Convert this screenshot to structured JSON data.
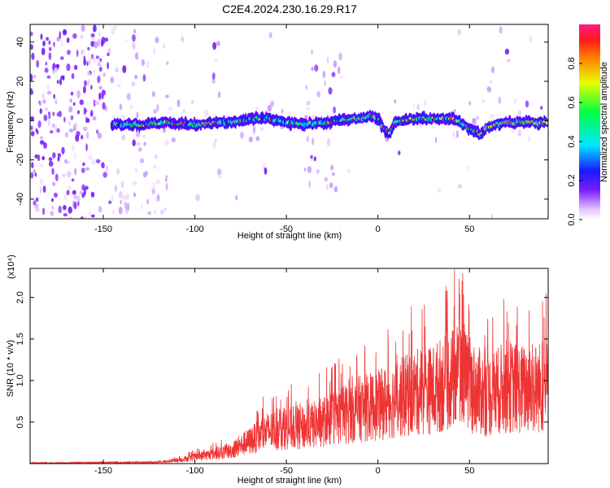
{
  "title": "C2E4.2024.230.16.29.R17",
  "chart_data": [
    {
      "type": "heatmap",
      "xlabel": "Height of straight line (km)",
      "ylabel": "Frequency (Hz)",
      "xlim": [
        -190,
        93
      ],
      "ylim": [
        -50,
        49
      ],
      "xticks": [
        -150,
        -100,
        -50,
        0,
        50
      ],
      "xtick_labels": [
        "-150",
        "-100",
        "-50",
        "0",
        "50"
      ],
      "yticks": [
        -40,
        -20,
        0,
        20,
        40
      ],
      "ytick_labels": [
        "-40",
        "-20",
        "0",
        "20",
        "40"
      ],
      "colorbar": {
        "label": "Normalized spectral amplitude",
        "range": [
          0,
          1
        ],
        "ticks": [
          0.0,
          0.2,
          0.4,
          0.6,
          0.8
        ],
        "tick_labels": [
          "0.0",
          "0.2",
          "0.4",
          "0.6",
          "0.8"
        ],
        "colormap": "rainbow (white-violet-blue-cyan-green-yellow-orange-red)"
      },
      "ridge": {
        "x": [
          -145,
          -130,
          -115,
          -100,
          -90,
          -80,
          -70,
          -60,
          -50,
          -40,
          -30,
          -20,
          -10,
          -5,
          0,
          3,
          6,
          10,
          20,
          30,
          40,
          45,
          50,
          54,
          57,
          60,
          65,
          70,
          80,
          93
        ],
        "y": [
          -2,
          -2,
          -1,
          -2,
          -1,
          -1,
          1,
          1,
          -1,
          -2,
          -1,
          0,
          1,
          2,
          1,
          -4,
          -7,
          0,
          1,
          1,
          1,
          -1,
          -4,
          -6,
          -7,
          -3,
          -2,
          -1,
          -1,
          -1
        ]
      }
    },
    {
      "type": "line",
      "xlabel": "Height of straight line (km)",
      "ylabel": "SNR (10 * v/v)",
      "y_multiplier": "(x10⁴)",
      "xlim": [
        -190,
        93
      ],
      "ylim": [
        0,
        2.35
      ],
      "xticks": [
        -150,
        -100,
        -50,
        0,
        50
      ],
      "xtick_labels": [
        "-150",
        "-100",
        "-50",
        "0",
        "50"
      ],
      "yticks": [
        0.5,
        1.0,
        1.5,
        2.0
      ],
      "ytick_labels": [
        "0.5",
        "1.0",
        "1.5",
        "2.0"
      ],
      "color": "#ee3333",
      "envelope": {
        "x": [
          -190,
          -120,
          -110,
          -100,
          -90,
          -80,
          -70,
          -60,
          -50,
          -40,
          -30,
          -20,
          -10,
          0,
          10,
          20,
          30,
          40,
          45,
          50,
          60,
          70,
          80,
          93
        ],
        "y": [
          0.01,
          0.02,
          0.05,
          0.1,
          0.15,
          0.2,
          0.35,
          0.5,
          0.55,
          0.55,
          0.65,
          0.75,
          0.85,
          0.9,
          1.0,
          1.1,
          1.15,
          1.3,
          1.4,
          1.2,
          1.05,
          1.2,
          1.15,
          1.2
        ]
      }
    }
  ]
}
